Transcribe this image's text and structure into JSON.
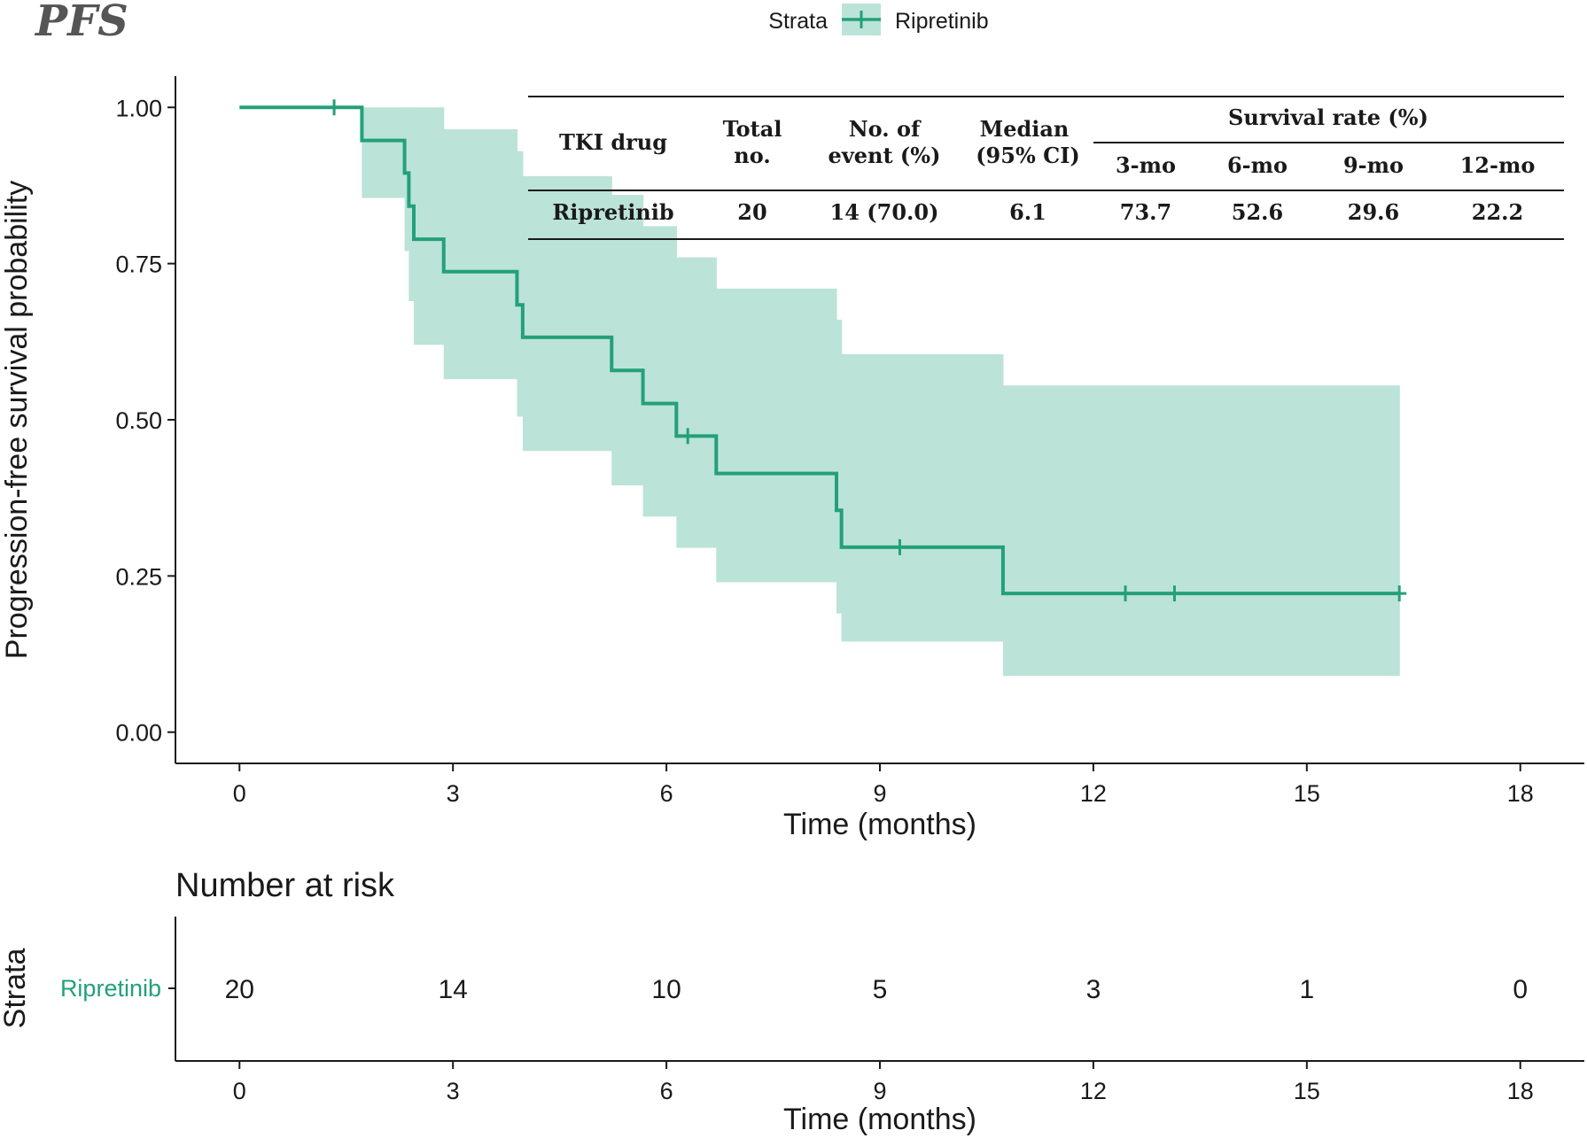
{
  "panel_title": "PFS",
  "legend": {
    "title": "Strata",
    "entry": "Ripretinib"
  },
  "colors": {
    "line": "#23A07A",
    "band": "#BCE3D8",
    "axis": "#1a1a1a"
  },
  "summary_table": {
    "headers": {
      "drug": "TKI drug",
      "total_1": "Total",
      "total_2": "no.",
      "events_1": "No. of",
      "events_2": "event (%)",
      "median_1": "Median",
      "median_2": "(95% CI)",
      "survival": "Survival rate (%)",
      "m3": "3-mo",
      "m6": "6-mo",
      "m9": "9-mo",
      "m12": "12-mo"
    },
    "row": {
      "drug": "Ripretinib",
      "total": "20",
      "events": "14 (70.0)",
      "median": "6.1",
      "m3": "73.7",
      "m6": "52.6",
      "m9": "29.6",
      "m12": "22.2"
    }
  },
  "chart_data": {
    "type": "line",
    "subtype": "kaplan-meier",
    "title": "PFS",
    "xlabel": "Time (months)",
    "ylabel": "Progression-free survival probability",
    "xlim": [
      -0.9,
      18.9
    ],
    "ylim": [
      -0.05,
      1.05
    ],
    "xticks": [
      0,
      3,
      6,
      9,
      12,
      15,
      18
    ],
    "xtick_labels": [
      "0",
      "3",
      "6",
      "9",
      "12",
      "15",
      "18"
    ],
    "yticks": [
      0,
      0.25,
      0.5,
      0.75,
      1.0
    ],
    "ytick_labels": [
      "0.00",
      "0.25",
      "0.50",
      "0.75",
      "1.00"
    ],
    "series": [
      {
        "name": "Ripretinib",
        "steps": [
          {
            "x": 0,
            "y": 1.0
          },
          {
            "x": 1.72,
            "y": 0.947
          },
          {
            "x": 2.32,
            "y": 0.895
          },
          {
            "x": 2.38,
            "y": 0.842
          },
          {
            "x": 2.45,
            "y": 0.789
          },
          {
            "x": 2.87,
            "y": 0.737
          },
          {
            "x": 3.9,
            "y": 0.684
          },
          {
            "x": 3.98,
            "y": 0.632
          },
          {
            "x": 5.23,
            "y": 0.579
          },
          {
            "x": 5.67,
            "y": 0.526
          },
          {
            "x": 6.14,
            "y": 0.474
          },
          {
            "x": 6.7,
            "y": 0.414
          },
          {
            "x": 8.39,
            "y": 0.355
          },
          {
            "x": 8.46,
            "y": 0.296
          },
          {
            "x": 10.73,
            "y": 0.222
          }
        ],
        "end_x": 16.3,
        "censored": [
          {
            "x": 1.33,
            "y": 1.0
          },
          {
            "x": 6.3,
            "y": 0.474
          },
          {
            "x": 9.28,
            "y": 0.296
          },
          {
            "x": 12.45,
            "y": 0.222
          },
          {
            "x": 13.14,
            "y": 0.222
          },
          {
            "x": 16.3,
            "y": 0.222
          }
        ],
        "ci_steps": [
          {
            "x": 1.72,
            "lower": 0.855,
            "upper": 1.0
          },
          {
            "x": 2.32,
            "lower": 0.77,
            "upper": 1.0
          },
          {
            "x": 2.38,
            "lower": 0.69,
            "upper": 1.0
          },
          {
            "x": 2.45,
            "lower": 0.62,
            "upper": 1.0
          },
          {
            "x": 2.87,
            "lower": 0.565,
            "upper": 0.965
          },
          {
            "x": 3.9,
            "lower": 0.505,
            "upper": 0.93
          },
          {
            "x": 3.98,
            "lower": 0.45,
            "upper": 0.89
          },
          {
            "x": 5.23,
            "lower": 0.395,
            "upper": 0.86
          },
          {
            "x": 5.67,
            "lower": 0.345,
            "upper": 0.81
          },
          {
            "x": 6.14,
            "lower": 0.295,
            "upper": 0.76
          },
          {
            "x": 6.7,
            "lower": 0.24,
            "upper": 0.71
          },
          {
            "x": 8.39,
            "lower": 0.19,
            "upper": 0.66
          },
          {
            "x": 8.46,
            "lower": 0.145,
            "upper": 0.605
          },
          {
            "x": 10.73,
            "lower": 0.09,
            "upper": 0.555
          }
        ]
      }
    ]
  },
  "risk_table": {
    "title": "Number at risk",
    "ylabel": "Strata",
    "group": "Ripretinib",
    "xlabel": "Time (months)",
    "times": [
      "0",
      "3",
      "6",
      "9",
      "12",
      "15",
      "18"
    ],
    "counts": [
      "20",
      "14",
      "10",
      "5",
      "3",
      "1",
      "0"
    ]
  }
}
